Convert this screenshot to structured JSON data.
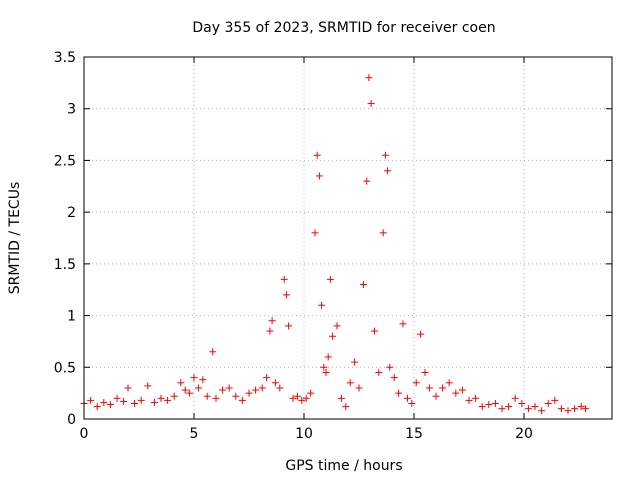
{
  "chart_data": {
    "type": "scatter",
    "title": "Day 355 of 2023, SRMTID for receiver coen",
    "xlabel": "GPS time / hours",
    "ylabel": "SRMTID / TECUs",
    "xlim": [
      0,
      24
    ],
    "ylim": [
      0,
      3.5
    ],
    "x_ticks": [
      0,
      5,
      10,
      15,
      20
    ],
    "x_tick_labels": [
      "0",
      "5",
      "10",
      "15",
      "20"
    ],
    "y_ticks": [
      0,
      0.5,
      1,
      1.5,
      2,
      2.5,
      3,
      3.5
    ],
    "y_tick_labels": [
      "0",
      "0.5",
      "1",
      "1.5",
      "2",
      "2.5",
      "3",
      "3.5"
    ],
    "grid": true,
    "marker": "+",
    "series_color": "#ff0000",
    "series": [
      {
        "name": "SRMTID",
        "x": [
          0.0,
          0.3,
          0.6,
          0.9,
          1.2,
          1.5,
          1.8,
          2.0,
          2.3,
          2.6,
          2.9,
          3.2,
          3.5,
          3.8,
          4.1,
          4.4,
          4.6,
          4.8,
          5.0,
          5.2,
          5.4,
          5.6,
          5.85,
          6.0,
          6.3,
          6.6,
          6.9,
          7.2,
          7.5,
          7.8,
          8.1,
          8.3,
          8.45,
          8.55,
          8.7,
          8.9,
          9.1,
          9.2,
          9.3,
          9.5,
          9.7,
          9.9,
          10.1,
          10.3,
          10.5,
          10.6,
          10.7,
          10.8,
          10.9,
          11.0,
          11.1,
          11.2,
          11.3,
          11.5,
          11.7,
          11.9,
          12.1,
          12.3,
          12.5,
          12.7,
          12.85,
          12.95,
          13.05,
          13.2,
          13.4,
          13.6,
          13.7,
          13.8,
          13.9,
          14.1,
          14.3,
          14.5,
          14.7,
          14.9,
          15.1,
          15.3,
          15.5,
          15.7,
          16.0,
          16.3,
          16.6,
          16.9,
          17.2,
          17.5,
          17.8,
          18.1,
          18.4,
          18.7,
          19.0,
          19.3,
          19.6,
          19.9,
          20.2,
          20.5,
          20.8,
          21.1,
          21.4,
          21.7,
          22.0,
          22.3,
          22.6,
          22.8
        ],
        "y": [
          0.15,
          0.18,
          0.12,
          0.16,
          0.14,
          0.2,
          0.17,
          0.3,
          0.15,
          0.18,
          0.32,
          0.16,
          0.2,
          0.18,
          0.22,
          0.35,
          0.28,
          0.25,
          0.4,
          0.3,
          0.38,
          0.22,
          0.65,
          0.2,
          0.28,
          0.3,
          0.22,
          0.18,
          0.25,
          0.28,
          0.3,
          0.4,
          0.85,
          0.95,
          0.35,
          0.3,
          1.35,
          1.2,
          0.9,
          0.2,
          0.22,
          0.18,
          0.2,
          0.25,
          1.8,
          2.55,
          2.35,
          1.1,
          0.5,
          0.45,
          0.6,
          1.35,
          0.8,
          0.9,
          0.2,
          0.12,
          0.35,
          0.55,
          0.3,
          1.3,
          2.3,
          3.3,
          3.05,
          0.85,
          0.45,
          1.8,
          2.55,
          2.4,
          0.5,
          0.4,
          0.25,
          0.92,
          0.2,
          0.15,
          0.35,
          0.82,
          0.45,
          0.3,
          0.22,
          0.3,
          0.35,
          0.25,
          0.28,
          0.18,
          0.2,
          0.12,
          0.14,
          0.15,
          0.1,
          0.12,
          0.2,
          0.15,
          0.1,
          0.12,
          0.08,
          0.15,
          0.18,
          0.1,
          0.08,
          0.1,
          0.12,
          0.1
        ]
      }
    ]
  }
}
